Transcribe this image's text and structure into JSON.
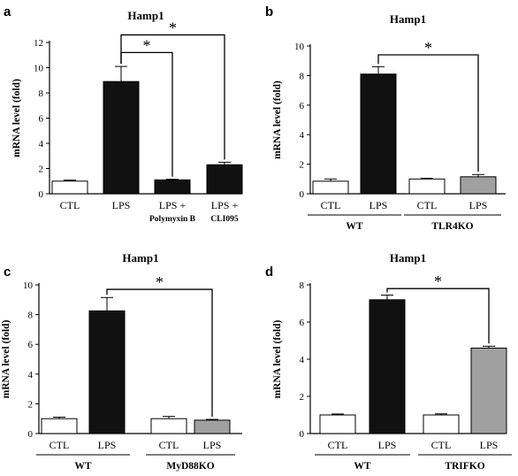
{
  "chart_data": [
    {
      "panel": "a",
      "type": "bar",
      "title": "Hamp1",
      "ylabel": "mRNA level (fold)",
      "ylim": [
        0,
        12
      ],
      "yticks": [
        0,
        2,
        4,
        6,
        8,
        10,
        12
      ],
      "categories": [
        {
          "lines": [
            "CTL"
          ]
        },
        {
          "lines": [
            "LPS"
          ]
        },
        {
          "lines": [
            "LPS +",
            "Polymyxin B"
          ]
        },
        {
          "lines": [
            "LPS +",
            "CLI095"
          ]
        }
      ],
      "values": [
        1.0,
        8.9,
        1.1,
        2.3
      ],
      "errors": [
        0.08,
        1.2,
        0.05,
        0.2
      ],
      "colors": [
        "#ffffff",
        "#111111",
        "#111111",
        "#111111"
      ],
      "groups": [],
      "significance": [
        {
          "from": 1,
          "to": 2,
          "label": "*",
          "y": 11.2
        },
        {
          "from": 1,
          "to": 3,
          "label": "*",
          "y": 12.6
        }
      ]
    },
    {
      "panel": "b",
      "type": "bar",
      "title": "Hamp1",
      "ylabel": "mRNA level (fold)",
      "ylim": [
        0,
        10
      ],
      "yticks": [
        0,
        2,
        4,
        6,
        8,
        10
      ],
      "categories": [
        {
          "lines": [
            "CTL"
          ]
        },
        {
          "lines": [
            "LPS"
          ]
        },
        {
          "lines": [
            "CTL"
          ]
        },
        {
          "lines": [
            "LPS"
          ]
        }
      ],
      "values": [
        0.85,
        8.1,
        1.0,
        1.15
      ],
      "errors": [
        0.15,
        0.5,
        0.05,
        0.15
      ],
      "colors": [
        "#ffffff",
        "#111111",
        "#ffffff",
        "#a0a0a0"
      ],
      "groups": [
        {
          "label": "WT",
          "from": 0,
          "to": 1
        },
        {
          "label": "TLR4KO",
          "from": 2,
          "to": 3
        }
      ],
      "significance": [
        {
          "from": 1,
          "to": 3,
          "label": "*",
          "y": 9.4
        }
      ]
    },
    {
      "panel": "c",
      "type": "bar",
      "title": "Hamp1",
      "ylabel": "mRNA level (fold)",
      "ylim": [
        0,
        10
      ],
      "yticks": [
        0,
        2,
        4,
        6,
        8,
        10
      ],
      "categories": [
        {
          "lines": [
            "CTL"
          ]
        },
        {
          "lines": [
            "LPS"
          ]
        },
        {
          "lines": [
            "CTL"
          ]
        },
        {
          "lines": [
            "LPS"
          ]
        }
      ],
      "values": [
        1.0,
        8.25,
        1.0,
        0.9
      ],
      "errors": [
        0.1,
        0.9,
        0.15,
        0.05
      ],
      "colors": [
        "#ffffff",
        "#111111",
        "#ffffff",
        "#a0a0a0"
      ],
      "groups": [
        {
          "label": "WT",
          "from": 0,
          "to": 1
        },
        {
          "label": "MyD88KO",
          "from": 2,
          "to": 3
        }
      ],
      "significance": [
        {
          "from": 1,
          "to": 3,
          "label": "*",
          "y": 9.7
        }
      ]
    },
    {
      "panel": "d",
      "type": "bar",
      "title": "Hamp1",
      "ylabel": "mRNA level (fold)",
      "ylim": [
        0,
        8
      ],
      "yticks": [
        0,
        2,
        4,
        6,
        8
      ],
      "categories": [
        {
          "lines": [
            "CTL"
          ]
        },
        {
          "lines": [
            "LPS"
          ]
        },
        {
          "lines": [
            "CTL"
          ]
        },
        {
          "lines": [
            "LPS"
          ]
        }
      ],
      "values": [
        1.0,
        7.2,
        1.0,
        4.6
      ],
      "errors": [
        0.05,
        0.25,
        0.06,
        0.1
      ],
      "colors": [
        "#ffffff",
        "#111111",
        "#ffffff",
        "#a0a0a0"
      ],
      "groups": [
        {
          "label": "WT",
          "from": 0,
          "to": 1
        },
        {
          "label": "TRIFKO",
          "from": 2,
          "to": 3
        }
      ],
      "significance": [
        {
          "from": 1,
          "to": 3,
          "label": "*",
          "y": 7.8
        }
      ]
    }
  ]
}
